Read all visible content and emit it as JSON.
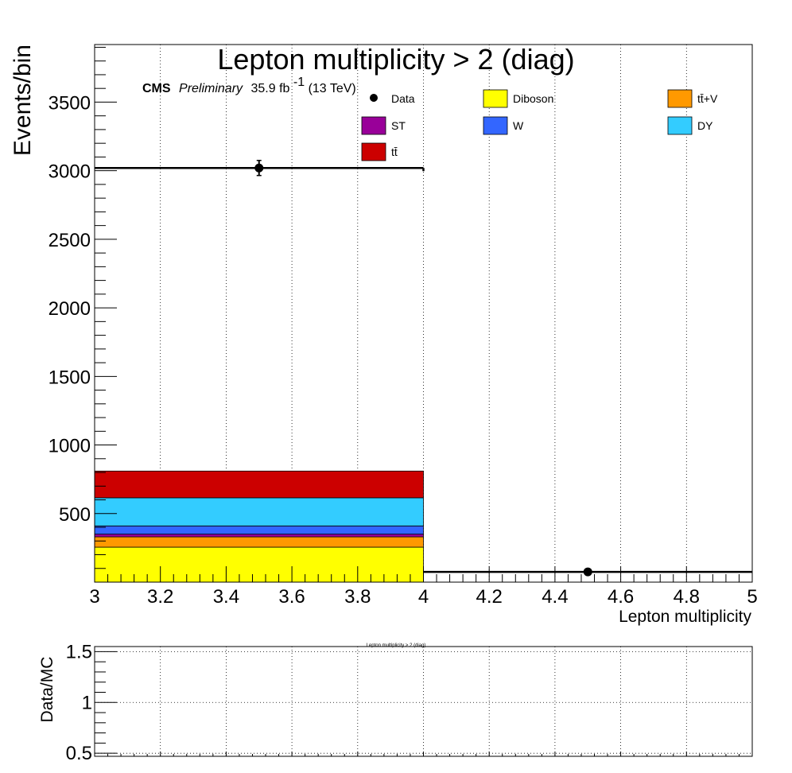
{
  "chart_data": [
    {
      "type": "bar",
      "stacked": true,
      "title": "Lepton multiplicity > 2 (diag)",
      "xlabel": "Lepton multiplicity",
      "ylabel": "Events/bin",
      "xlim": [
        3,
        5
      ],
      "ylim": [
        0,
        3920
      ],
      "x_ticks": [
        "3",
        "3.2",
        "3.4",
        "3.6",
        "3.8",
        "4",
        "4.2",
        "4.4",
        "4.6",
        "4.8",
        "5"
      ],
      "y_ticks": [
        "500",
        "1000",
        "1500",
        "2000",
        "2500",
        "3000",
        "3500"
      ],
      "y_tick_values": [
        500,
        1000,
        1500,
        2000,
        2500,
        3000,
        3500
      ],
      "bin_edges": [
        3,
        4,
        5
      ],
      "grid": "vertical",
      "cms_label": {
        "bold": "CMS",
        "italic": "Preliminary",
        "lumi_pre": "35.9 fb",
        "lumi_sup": "-1",
        "lumi_post": " (13 TeV)"
      },
      "series": [
        {
          "name": "Diboson",
          "color": "#ffff00",
          "values": [
            255,
            0
          ]
        },
        {
          "name": "tt̄+V",
          "color": "#ff9900",
          "values": [
            75,
            0
          ]
        },
        {
          "name": "ST",
          "color": "#990099",
          "values": [
            20,
            0
          ]
        },
        {
          "name": "W",
          "color": "#3366ff",
          "values": [
            60,
            0
          ]
        },
        {
          "name": "DY",
          "color": "#33ccff",
          "values": [
            205,
            0
          ]
        },
        {
          "name": "tt̄",
          "color": "#cc0000",
          "values": [
            195,
            0
          ]
        }
      ],
      "data": {
        "name": "Data",
        "x": [
          3.5,
          4.5
        ],
        "y": [
          3020,
          75
        ],
        "yerr": [
          55,
          9
        ]
      },
      "step_line": {
        "y": [
          3020,
          75
        ]
      },
      "legend": [
        {
          "name": "Data",
          "kind": "marker"
        },
        {
          "name": "Diboson",
          "kind": "box",
          "color": "#ffff00"
        },
        {
          "name": "tt̄+V",
          "kind": "box",
          "color": "#ff9900"
        },
        {
          "name": "ST",
          "kind": "box",
          "color": "#990099"
        },
        {
          "name": "W",
          "kind": "box",
          "color": "#3366ff"
        },
        {
          "name": "DY",
          "kind": "box",
          "color": "#33ccff"
        },
        {
          "name": "tt̄",
          "kind": "box",
          "color": "#cc0000"
        }
      ],
      "legend_position": "top"
    },
    {
      "type": "scatter",
      "title": "Lepton multiplicity > 2 (diag)",
      "ylabel": "Data/MC",
      "xlim": [
        3,
        5
      ],
      "ylim": [
        0.47,
        1.55
      ],
      "y_ticks": [
        "0.5",
        "1",
        "1.5"
      ],
      "y_tick_values": [
        0.5,
        1,
        1.5
      ],
      "grid": "both",
      "x": [],
      "y": []
    }
  ]
}
